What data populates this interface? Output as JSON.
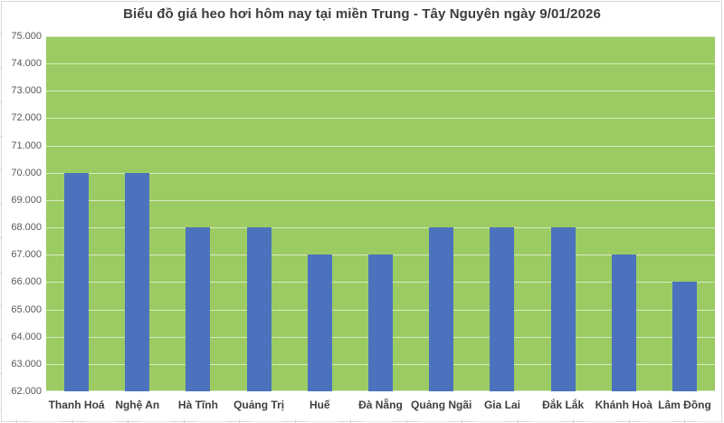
{
  "title": "Biểu đồ giá heo hơi hôm nay tại miền Trung - Tây Nguyên ngày 9/01/2026",
  "chart_data": {
    "type": "bar",
    "title": "Biểu đồ giá heo hơi hôm nay tại miền Trung - Tây Nguyên ngày 9/01/2026",
    "categories": [
      "Thanh Hoá",
      "Nghệ An",
      "Hà Tĩnh",
      "Quảng Trị",
      "Huế",
      "Đà Nẵng",
      "Quảng Ngãi",
      "Gia Lai",
      "Đắk Lắk",
      "Khánh Hoà",
      "Lâm Đồng"
    ],
    "values": [
      70000,
      70000,
      68000,
      68000,
      67000,
      67000,
      68000,
      68000,
      68000,
      67000,
      66000
    ],
    "xlabel": "",
    "ylabel": "",
    "ylim": [
      62000,
      75000
    ],
    "ytick_step": 1000,
    "ytick_labels_top_to_bottom": [
      "75.000",
      "74.000",
      "73.000",
      "72.000",
      "71.000",
      "70.000",
      "69.000",
      "68.000",
      "67.000",
      "66.000",
      "65.000",
      "64.000",
      "63.000",
      "62.000"
    ],
    "grid": "horizontal",
    "legend": "none",
    "colors": {
      "bar_fill": "#4c72be",
      "plot_background": "#9bcb62",
      "gridline": "#dcead0",
      "title_text": "#3d3d3d",
      "y_axis_text": "#595959",
      "x_axis_text": "#404040",
      "chart_border": "#d9d9d9",
      "page_background": "#ffffff"
    }
  }
}
